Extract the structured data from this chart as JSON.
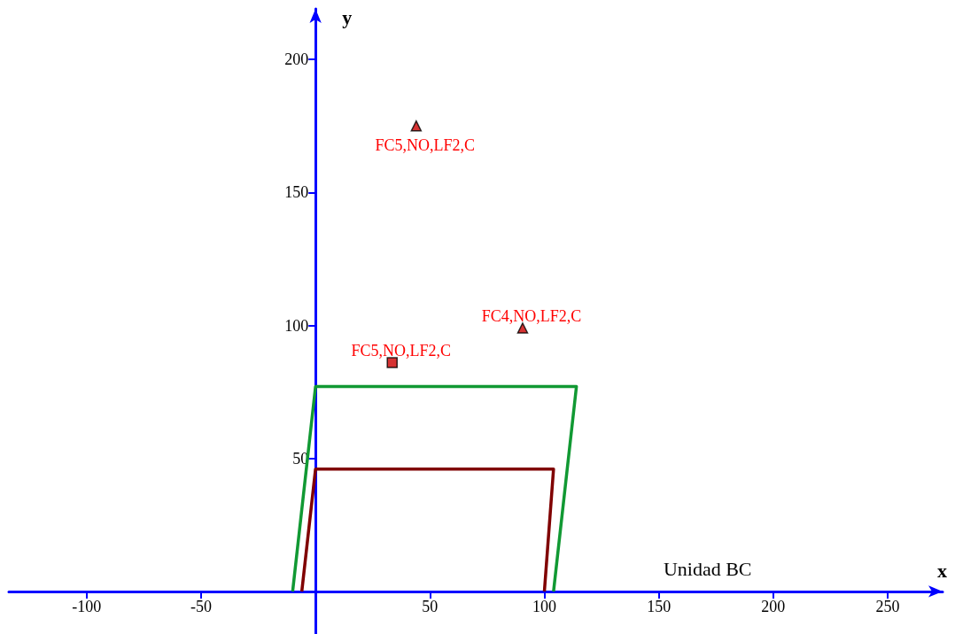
{
  "chart_data": {
    "type": "line",
    "xlabel": "x",
    "ylabel": "y",
    "xlim": [
      -134,
      274
    ],
    "ylim": [
      -16,
      219
    ],
    "xticks": [
      -100,
      -50,
      50,
      100,
      150,
      200,
      250
    ],
    "yticks": [
      50,
      100,
      150,
      200
    ],
    "grid": false,
    "series": [
      {
        "type": "line",
        "color": "#119933",
        "x": [
          -10,
          0,
          114,
          104
        ],
        "values": [
          0,
          77,
          77,
          0
        ],
        "marker": "none"
      },
      {
        "type": "line",
        "color": "#800000",
        "x": [
          -6,
          0,
          104,
          100
        ],
        "values": [
          0,
          46,
          46,
          0
        ],
        "marker": "none"
      },
      {
        "type": "scatter",
        "color": "#cc0000",
        "x": [
          44,
          90.5
        ],
        "values": [
          175,
          99
        ],
        "marker": "triangle"
      },
      {
        "type": "scatter",
        "color": "#cc0000",
        "x": [
          33.5
        ],
        "values": [
          86
        ],
        "marker": "square"
      }
    ],
    "annotations": [
      {
        "text": "FC5,NO,LF2,C",
        "x": 44,
        "y": 175
      },
      {
        "text": "FC4,NO,LF2,C",
        "x": 90.5,
        "y": 99
      },
      {
        "text": "FC5,NO,LF2,C",
        "x": 33.5,
        "y": 86
      },
      "Unidad BC"
    ]
  }
}
